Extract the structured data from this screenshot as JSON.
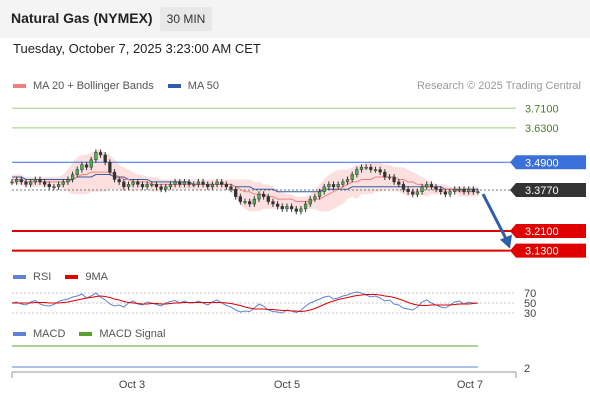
{
  "header": {
    "title": "Natural Gas (NYMEX)",
    "interval": "30 MIN"
  },
  "datetime": "Tuesday, October 7, 2025 3:23:00 AM CET",
  "credit": "Research © 2025 Trading Central",
  "colors": {
    "ma20": "#f08080",
    "ma50": "#2f5fa7",
    "bands": "#fbdada",
    "support": "#e00000",
    "resistance_strong": "#3b6fd9",
    "resistance_weak": "#9ccf7c",
    "price": "#333333",
    "forecast_arrow": "#2f5fa7",
    "rsi": "#5b84d6",
    "rsi_ma": "#e00000",
    "macd": "#5b84d6",
    "macd_signal": "#5aa02c"
  },
  "chart_data": [
    {
      "type": "candlestick",
      "legend": [
        {
          "name": "MA 20 + Bollinger Bands",
          "color": "#f08080"
        },
        {
          "name": "MA 50",
          "color": "#2f5fa7"
        }
      ],
      "x_ticks": [
        "Oct 3",
        "Oct 5",
        "Oct 7"
      ],
      "ylim": [
        3.1,
        3.76
      ],
      "levels": [
        {
          "label": "3.7100",
          "value": 3.71,
          "kind": "resistance-weak"
        },
        {
          "label": "3.6300",
          "value": 3.63,
          "kind": "resistance-weak"
        },
        {
          "label": "3.4900",
          "value": 3.49,
          "kind": "resistance"
        },
        {
          "label": "3.3770",
          "value": 3.377,
          "kind": "last-price"
        },
        {
          "label": "3.2100",
          "value": 3.21,
          "kind": "support"
        },
        {
          "label": "3.1300",
          "value": 3.13,
          "kind": "support"
        }
      ],
      "close": [
        3.41,
        3.42,
        3.41,
        3.4,
        3.41,
        3.42,
        3.41,
        3.4,
        3.39,
        3.39,
        3.4,
        3.41,
        3.42,
        3.44,
        3.46,
        3.48,
        3.47,
        3.5,
        3.53,
        3.52,
        3.49,
        3.45,
        3.42,
        3.41,
        3.39,
        3.4,
        3.41,
        3.4,
        3.39,
        3.4,
        3.4,
        3.39,
        3.38,
        3.39,
        3.4,
        3.41,
        3.4,
        3.41,
        3.4,
        3.4,
        3.41,
        3.4,
        3.39,
        3.4,
        3.41,
        3.4,
        3.39,
        3.38,
        3.35,
        3.33,
        3.33,
        3.32,
        3.34,
        3.36,
        3.35,
        3.33,
        3.32,
        3.31,
        3.3,
        3.31,
        3.3,
        3.29,
        3.3,
        3.32,
        3.34,
        3.35,
        3.37,
        3.39,
        3.4,
        3.39,
        3.4,
        3.41,
        3.42,
        3.44,
        3.46,
        3.47,
        3.47,
        3.46,
        3.46,
        3.45,
        3.43,
        3.43,
        3.41,
        3.4,
        3.38,
        3.37,
        3.36,
        3.37,
        3.39,
        3.4,
        3.39,
        3.38,
        3.37,
        3.36,
        3.37,
        3.38,
        3.38,
        3.37,
        3.38,
        3.37,
        3.37
      ],
      "ma20": [
        3.42,
        3.42,
        3.42,
        3.41,
        3.41,
        3.41,
        3.41,
        3.41,
        3.41,
        3.41,
        3.41,
        3.41,
        3.41,
        3.42,
        3.43,
        3.44,
        3.44,
        3.45,
        3.45,
        3.45,
        3.45,
        3.45,
        3.44,
        3.43,
        3.42,
        3.42,
        3.41,
        3.41,
        3.41,
        3.41,
        3.4,
        3.4,
        3.4,
        3.4,
        3.4,
        3.4,
        3.4,
        3.4,
        3.4,
        3.4,
        3.4,
        3.4,
        3.4,
        3.4,
        3.4,
        3.4,
        3.4,
        3.4,
        3.39,
        3.38,
        3.37,
        3.37,
        3.36,
        3.36,
        3.36,
        3.35,
        3.35,
        3.34,
        3.34,
        3.34,
        3.34,
        3.33,
        3.33,
        3.33,
        3.33,
        3.34,
        3.34,
        3.35,
        3.36,
        3.37,
        3.38,
        3.39,
        3.4,
        3.41,
        3.41,
        3.42,
        3.42,
        3.42,
        3.43,
        3.43,
        3.43,
        3.43,
        3.43,
        3.42,
        3.42,
        3.41,
        3.41,
        3.4,
        3.4,
        3.39,
        3.39,
        3.38,
        3.38,
        3.38,
        3.38,
        3.38,
        3.37,
        3.37,
        3.37,
        3.37,
        3.37
      ],
      "upper_band": [
        3.44,
        3.44,
        3.44,
        3.43,
        3.43,
        3.43,
        3.43,
        3.43,
        3.43,
        3.43,
        3.43,
        3.44,
        3.46,
        3.49,
        3.51,
        3.52,
        3.52,
        3.53,
        3.54,
        3.54,
        3.53,
        3.52,
        3.5,
        3.48,
        3.47,
        3.46,
        3.45,
        3.44,
        3.44,
        3.43,
        3.43,
        3.43,
        3.42,
        3.42,
        3.42,
        3.42,
        3.42,
        3.42,
        3.42,
        3.42,
        3.42,
        3.42,
        3.42,
        3.42,
        3.42,
        3.42,
        3.42,
        3.42,
        3.42,
        3.42,
        3.42,
        3.42,
        3.41,
        3.41,
        3.4,
        3.4,
        3.39,
        3.38,
        3.37,
        3.36,
        3.36,
        3.35,
        3.35,
        3.35,
        3.36,
        3.38,
        3.4,
        3.42,
        3.44,
        3.45,
        3.46,
        3.46,
        3.46,
        3.47,
        3.48,
        3.48,
        3.49,
        3.49,
        3.49,
        3.49,
        3.48,
        3.48,
        3.47,
        3.47,
        3.47,
        3.46,
        3.45,
        3.44,
        3.43,
        3.42,
        3.41,
        3.4,
        3.4,
        3.4,
        3.39,
        3.39,
        3.39,
        3.39,
        3.39,
        3.39,
        3.39
      ],
      "lower_band": [
        3.4,
        3.4,
        3.4,
        3.39,
        3.39,
        3.39,
        3.39,
        3.39,
        3.39,
        3.39,
        3.39,
        3.38,
        3.37,
        3.36,
        3.36,
        3.36,
        3.36,
        3.37,
        3.37,
        3.37,
        3.37,
        3.38,
        3.38,
        3.38,
        3.37,
        3.38,
        3.37,
        3.38,
        3.38,
        3.39,
        3.37,
        3.37,
        3.38,
        3.38,
        3.38,
        3.38,
        3.38,
        3.38,
        3.38,
        3.38,
        3.38,
        3.38,
        3.38,
        3.38,
        3.38,
        3.38,
        3.38,
        3.37,
        3.35,
        3.32,
        3.3,
        3.29,
        3.29,
        3.29,
        3.3,
        3.3,
        3.3,
        3.3,
        3.3,
        3.31,
        3.31,
        3.3,
        3.3,
        3.3,
        3.3,
        3.3,
        3.29,
        3.29,
        3.29,
        3.3,
        3.31,
        3.32,
        3.34,
        3.35,
        3.34,
        3.36,
        3.36,
        3.36,
        3.37,
        3.37,
        3.38,
        3.38,
        3.38,
        3.37,
        3.36,
        3.35,
        3.36,
        3.35,
        3.36,
        3.35,
        3.36,
        3.36,
        3.36,
        3.36,
        3.37,
        3.37,
        3.35,
        3.35,
        3.35,
        3.35,
        3.35
      ],
      "ma50": [
        3.43,
        3.43,
        3.43,
        3.42,
        3.42,
        3.42,
        3.42,
        3.42,
        3.42,
        3.42,
        3.42,
        3.42,
        3.42,
        3.42,
        3.43,
        3.43,
        3.43,
        3.43,
        3.44,
        3.44,
        3.44,
        3.44,
        3.43,
        3.43,
        3.43,
        3.42,
        3.42,
        3.42,
        3.42,
        3.42,
        3.41,
        3.41,
        3.41,
        3.41,
        3.41,
        3.41,
        3.41,
        3.41,
        3.41,
        3.4,
        3.4,
        3.4,
        3.4,
        3.4,
        3.4,
        3.4,
        3.4,
        3.4,
        3.39,
        3.39,
        3.39,
        3.39,
        3.38,
        3.38,
        3.38,
        3.38,
        3.38,
        3.37,
        3.37,
        3.37,
        3.37,
        3.37,
        3.37,
        3.37,
        3.37,
        3.37,
        3.37,
        3.38,
        3.38,
        3.38,
        3.38,
        3.38,
        3.38,
        3.39,
        3.39,
        3.39,
        3.39,
        3.39,
        3.39,
        3.39,
        3.39,
        3.39,
        3.39,
        3.39,
        3.39,
        3.39,
        3.39,
        3.39,
        3.39,
        3.39,
        3.39,
        3.39,
        3.39,
        3.38,
        3.38,
        3.38,
        3.38,
        3.38,
        3.38,
        3.38,
        3.38
      ],
      "forecast": [
        3.377,
        3.13
      ]
    },
    {
      "type": "line",
      "legend": [
        {
          "name": "RSI",
          "color": "#5b84d6"
        },
        {
          "name": "9MA",
          "color": "#e00000"
        }
      ],
      "ylim": [
        28,
        72
      ],
      "y_ticks": [
        "70",
        "50",
        "30"
      ],
      "rsi": [
        50,
        52,
        48,
        46,
        52,
        55,
        48,
        45,
        44,
        47,
        53,
        56,
        58,
        62,
        64,
        68,
        60,
        64,
        70,
        62,
        56,
        48,
        44,
        46,
        42,
        50,
        54,
        48,
        46,
        52,
        50,
        47,
        44,
        50,
        53,
        55,
        50,
        54,
        50,
        50,
        54,
        50,
        46,
        52,
        56,
        50,
        45,
        42,
        36,
        32,
        34,
        33,
        40,
        48,
        44,
        36,
        33,
        32,
        30,
        36,
        34,
        31,
        35,
        44,
        50,
        54,
        58,
        62,
        64,
        58,
        60,
        64,
        66,
        70,
        72,
        70,
        66,
        62,
        64,
        60,
        54,
        56,
        48,
        46,
        40,
        38,
        36,
        42,
        52,
        56,
        50,
        46,
        42,
        40,
        46,
        52,
        54,
        48,
        52,
        50,
        50
      ],
      "rsi_ma": [
        50,
        50,
        50,
        50,
        50,
        51,
        51,
        51,
        50,
        50,
        50,
        51,
        52,
        54,
        56,
        58,
        60,
        61,
        63,
        64,
        63,
        61,
        58,
        56,
        53,
        51,
        50,
        49,
        48,
        48,
        49,
        49,
        48,
        48,
        49,
        50,
        50,
        51,
        51,
        51,
        51,
        51,
        51,
        51,
        51,
        51,
        50,
        49,
        47,
        45,
        42,
        40,
        38,
        38,
        38,
        37,
        37,
        36,
        35,
        35,
        34,
        34,
        33,
        34,
        36,
        39,
        43,
        47,
        51,
        54,
        57,
        59,
        61,
        63,
        65,
        66,
        67,
        67,
        67,
        66,
        64,
        63,
        61,
        58,
        55,
        51,
        48,
        46,
        45,
        45,
        46,
        46,
        46,
        46,
        46,
        47,
        48,
        48,
        48,
        49,
        50
      ]
    },
    {
      "type": "line",
      "legend": [
        {
          "name": "MACD",
          "color": "#5b84d6"
        },
        {
          "name": "MACD Signal",
          "color": "#5aa02c"
        }
      ],
      "y_ticks": [
        "2"
      ],
      "ylim": [
        -2,
        3
      ],
      "macd": [
        -1.5,
        -1.5
      ],
      "macd_signal": [
        2.0,
        2.0
      ]
    }
  ]
}
